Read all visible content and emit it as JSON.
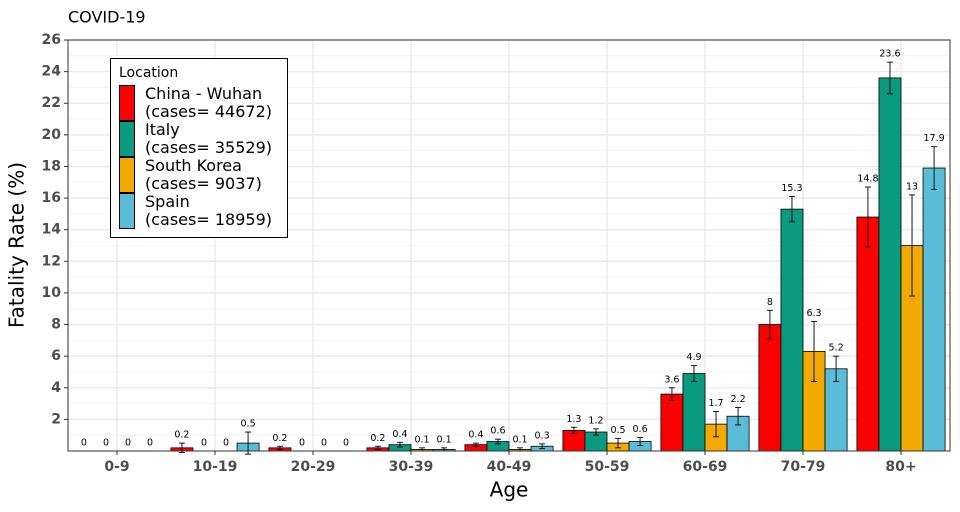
{
  "chart_data": {
    "type": "bar",
    "title": "COVID-19",
    "x_label": "Age",
    "y_label": "Fatality Rate (%)",
    "categories": [
      "0-9",
      "10-19",
      "20-29",
      "30-39",
      "40-49",
      "50-59",
      "60-69",
      "70-79",
      "80+"
    ],
    "legend_title": "Location",
    "legend_position": "top-left",
    "grid": true,
    "ylim": [
      0,
      26
    ],
    "yticks": [
      2,
      4,
      6,
      8,
      10,
      12,
      14,
      16,
      18,
      20,
      22,
      24,
      26
    ],
    "series": [
      {
        "name": "China - Wuhan\n(cases= 44672)",
        "color": "#ff0000",
        "values": [
          0,
          0.2,
          0.2,
          0.2,
          0.4,
          1.3,
          3.6,
          8,
          14.8
        ],
        "errors": [
          null,
          0.3,
          0.1,
          0.1,
          0.1,
          0.2,
          0.4,
          0.9,
          1.9
        ]
      },
      {
        "name": "Italy\n(cases= 35529)",
        "color": "#0a9a80",
        "values": [
          0,
          0,
          0,
          0.4,
          0.6,
          1.2,
          4.9,
          15.3,
          23.6
        ],
        "errors": [
          null,
          null,
          null,
          0.15,
          0.15,
          0.2,
          0.5,
          0.8,
          1.0
        ]
      },
      {
        "name": "South Korea\n(cases= 9037)",
        "color": "#f2aa00",
        "values": [
          0,
          0,
          0,
          0.1,
          0.1,
          0.5,
          1.7,
          6.3,
          13
        ],
        "errors": [
          null,
          null,
          null,
          0.1,
          0.1,
          0.3,
          0.8,
          1.9,
          3.2
        ]
      },
      {
        "name": "Spain\n(cases= 18959)",
        "color": "#5bbcd8",
        "values": [
          0,
          0.5,
          0,
          0.1,
          0.3,
          0.6,
          2.2,
          5.2,
          17.9
        ],
        "errors": [
          null,
          0.7,
          null,
          0.1,
          0.15,
          0.25,
          0.55,
          0.8,
          1.35
        ]
      }
    ]
  }
}
